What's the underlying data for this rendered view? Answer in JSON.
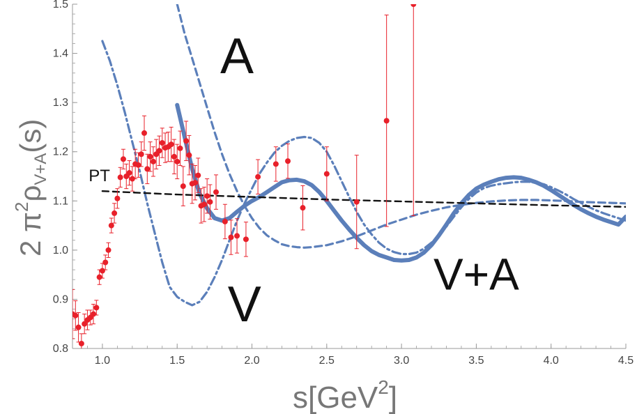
{
  "chart_data": {
    "type": "line",
    "xlabel": "s[GeV²]",
    "ylabel_parts": {
      "prefix": "2 π",
      "sup": "2",
      "rho": "ρ",
      "sub": "V+A",
      "suffix": "(s)"
    },
    "xlabel_parts": {
      "base": "s[GeV",
      "sup": "2",
      "close": "]"
    },
    "xlim": [
      0.8,
      4.5
    ],
    "ylim": [
      0.8,
      1.5
    ],
    "x_ticks": [
      1.0,
      1.5,
      2.0,
      2.5,
      3.0,
      3.5,
      4.0,
      4.5
    ],
    "x_tick_labels": [
      "1.0",
      "1.5",
      "2.0",
      "2.5",
      "3.0",
      "3.5",
      "4.0",
      "4.5"
    ],
    "y_ticks": [
      0.8,
      0.9,
      1.0,
      1.1,
      1.2,
      1.3,
      1.4,
      1.5
    ],
    "y_tick_labels": [
      "0.8",
      "0.9",
      "1.0",
      "1.1",
      "1.2",
      "1.3",
      "1.4",
      "1.5"
    ],
    "grid": false,
    "colors": {
      "model": "#5b7fba",
      "pt": "#111111",
      "data": "#e8202a",
      "axis": "#999999"
    },
    "annotations": [
      {
        "text": "A",
        "x": 1.9,
        "y": 1.36
      },
      {
        "text": "V",
        "x": 1.95,
        "y": 0.855
      },
      {
        "text": "V+A",
        "x": 3.5,
        "y": 0.92
      },
      {
        "text": "PT",
        "x": 0.98,
        "y": 1.14
      }
    ],
    "series": [
      {
        "style": "solid",
        "x": [
          1.5,
          1.55,
          1.6,
          1.65,
          1.7,
          1.75,
          1.8,
          1.85,
          1.9,
          1.95,
          2.0,
          2.05,
          2.1,
          2.15,
          2.2,
          2.25,
          2.3,
          2.35,
          2.4,
          2.45,
          2.5,
          2.55,
          2.6,
          2.65,
          2.7,
          2.75,
          2.8,
          2.85,
          2.9,
          2.95,
          3.0,
          3.05,
          3.1,
          3.15,
          3.2,
          3.25,
          3.3,
          3.35,
          3.4,
          3.45,
          3.5,
          3.55,
          3.6,
          3.65,
          3.7,
          3.75,
          3.8,
          3.85,
          3.9,
          3.95,
          4.0,
          4.05,
          4.1,
          4.15,
          4.2,
          4.25,
          4.3,
          4.35,
          4.4,
          4.45,
          4.5
        ],
        "y": [
          1.295,
          1.23,
          1.165,
          1.115,
          1.085,
          1.065,
          1.06,
          1.065,
          1.078,
          1.09,
          1.1,
          1.108,
          1.118,
          1.128,
          1.138,
          1.142,
          1.143,
          1.14,
          1.132,
          1.118,
          1.1,
          1.08,
          1.06,
          1.042,
          1.025,
          1.01,
          0.998,
          0.99,
          0.985,
          0.98,
          0.979,
          0.98,
          0.985,
          0.995,
          1.01,
          1.03,
          1.052,
          1.075,
          1.095,
          1.112,
          1.125,
          1.133,
          1.139,
          1.144,
          1.147,
          1.148,
          1.147,
          1.143,
          1.138,
          1.131,
          1.122,
          1.112,
          1.102,
          1.092,
          1.083,
          1.075,
          1.068,
          1.062,
          1.057,
          1.052,
          1.068
        ]
      },
      {
        "style": "dashed",
        "x": [
          1.5,
          1.55,
          1.6,
          1.65,
          1.7,
          1.75,
          1.8,
          1.85,
          1.9,
          1.95,
          2.0,
          2.05,
          2.1,
          2.15,
          2.2,
          2.25,
          2.3,
          2.35,
          2.4,
          2.45,
          2.5,
          2.55,
          2.6,
          2.65,
          2.7,
          2.75,
          2.8,
          2.85,
          2.9,
          2.95,
          3.0,
          3.1,
          3.2,
          3.3,
          3.4,
          3.5,
          3.6,
          3.7,
          3.8,
          3.9,
          4.0,
          4.1,
          4.2,
          4.3,
          4.4,
          4.5
        ],
        "y": [
          1.5,
          1.44,
          1.39,
          1.34,
          1.29,
          1.24,
          1.195,
          1.155,
          1.12,
          1.09,
          1.065,
          1.045,
          1.03,
          1.02,
          1.012,
          1.008,
          1.006,
          1.005,
          1.006,
          1.008,
          1.01,
          1.014,
          1.018,
          1.023,
          1.028,
          1.034,
          1.04,
          1.046,
          1.052,
          1.057,
          1.062,
          1.072,
          1.08,
          1.087,
          1.092,
          1.096,
          1.099,
          1.101,
          1.102,
          1.102,
          1.101,
          1.1,
          1.098,
          1.097,
          1.096,
          1.095
        ]
      },
      {
        "style": "dashdot",
        "x": [
          1.0,
          1.05,
          1.1,
          1.15,
          1.2,
          1.25,
          1.3,
          1.35,
          1.4,
          1.45,
          1.5,
          1.55,
          1.6,
          1.65,
          1.7,
          1.75,
          1.8,
          1.85,
          1.9,
          1.95,
          2.0,
          2.05,
          2.1,
          2.15,
          2.2,
          2.25,
          2.3,
          2.35,
          2.4,
          2.45,
          2.5,
          2.55,
          2.6,
          2.65,
          2.7,
          2.75,
          2.8,
          2.85,
          2.9,
          2.95,
          3.0,
          3.05,
          3.1,
          3.15,
          3.2,
          3.25,
          3.3,
          3.35,
          3.4,
          3.45,
          3.5,
          3.55,
          3.6,
          3.65,
          3.7,
          3.75,
          3.8,
          3.85,
          3.9,
          3.95,
          4.0,
          4.05,
          4.1,
          4.15,
          4.2,
          4.25,
          4.3,
          4.35,
          4.4,
          4.45,
          4.5
        ],
        "y": [
          1.425,
          1.385,
          1.335,
          1.28,
          1.22,
          1.16,
          1.095,
          1.035,
          0.975,
          0.925,
          0.905,
          0.895,
          0.888,
          0.895,
          0.915,
          0.945,
          0.98,
          1.02,
          1.06,
          1.095,
          1.125,
          1.155,
          1.178,
          1.198,
          1.212,
          1.222,
          1.228,
          1.23,
          1.228,
          1.218,
          1.2,
          1.172,
          1.14,
          1.108,
          1.078,
          1.052,
          1.032,
          1.015,
          1.003,
          0.996,
          0.992,
          0.992,
          0.995,
          1.003,
          1.015,
          1.03,
          1.048,
          1.068,
          1.087,
          1.104,
          1.117,
          1.126,
          1.131,
          1.134,
          1.136,
          1.138,
          1.139,
          1.139,
          1.137,
          1.134,
          1.128,
          1.121,
          1.113,
          1.104,
          1.096,
          1.088,
          1.081,
          1.075,
          1.07,
          1.065,
          1.06
        ]
      },
      {
        "style": "pt-dashed",
        "x": [
          1.0,
          1.5,
          2.0,
          2.5,
          3.0,
          3.5,
          4.0,
          4.5
        ],
        "y": [
          1.12,
          1.113,
          1.108,
          1.103,
          1.099,
          1.095,
          1.091,
          1.088
        ]
      }
    ],
    "data_points": [
      {
        "x": 0.8,
        "y": 0.87,
        "err": 0.05
      },
      {
        "x": 0.82,
        "y": 0.867,
        "err": 0.03
      },
      {
        "x": 0.84,
        "y": 0.843,
        "err": 0.03
      },
      {
        "x": 0.86,
        "y": 0.81,
        "err": 0.02
      },
      {
        "x": 0.88,
        "y": 0.85,
        "err": 0.02
      },
      {
        "x": 0.9,
        "y": 0.858,
        "err": 0.02
      },
      {
        "x": 0.92,
        "y": 0.863,
        "err": 0.015
      },
      {
        "x": 0.94,
        "y": 0.87,
        "err": 0.02
      },
      {
        "x": 0.96,
        "y": 0.883,
        "err": 0.015
      },
      {
        "x": 0.98,
        "y": 0.945,
        "err": 0.015
      },
      {
        "x": 1.0,
        "y": 0.958,
        "err": 0.015
      },
      {
        "x": 1.02,
        "y": 0.975,
        "err": 0.015
      },
      {
        "x": 1.04,
        "y": 1.0,
        "err": 0.015
      },
      {
        "x": 1.06,
        "y": 1.05,
        "err": 0.015
      },
      {
        "x": 1.08,
        "y": 1.075,
        "err": 0.02
      },
      {
        "x": 1.1,
        "y": 1.105,
        "err": 0.02
      },
      {
        "x": 1.12,
        "y": 1.148,
        "err": 0.02
      },
      {
        "x": 1.14,
        "y": 1.185,
        "err": 0.02
      },
      {
        "x": 1.16,
        "y": 1.15,
        "err": 0.025
      },
      {
        "x": 1.18,
        "y": 1.157,
        "err": 0.025
      },
      {
        "x": 1.2,
        "y": 1.145,
        "err": 0.025
      },
      {
        "x": 1.22,
        "y": 1.175,
        "err": 0.03
      },
      {
        "x": 1.24,
        "y": 1.173,
        "err": 0.025
      },
      {
        "x": 1.26,
        "y": 1.195,
        "err": 0.025
      },
      {
        "x": 1.28,
        "y": 1.238,
        "err": 0.035
      },
      {
        "x": 1.3,
        "y": 1.165,
        "err": 0.03
      },
      {
        "x": 1.32,
        "y": 1.19,
        "err": 0.03
      },
      {
        "x": 1.34,
        "y": 1.18,
        "err": 0.03
      },
      {
        "x": 1.36,
        "y": 1.195,
        "err": 0.03
      },
      {
        "x": 1.38,
        "y": 1.202,
        "err": 0.03
      },
      {
        "x": 1.4,
        "y": 1.218,
        "err": 0.03
      },
      {
        "x": 1.42,
        "y": 1.208,
        "err": 0.03
      },
      {
        "x": 1.44,
        "y": 1.21,
        "err": 0.03
      },
      {
        "x": 1.46,
        "y": 1.215,
        "err": 0.035
      },
      {
        "x": 1.48,
        "y": 1.19,
        "err": 0.035
      },
      {
        "x": 1.5,
        "y": 1.18,
        "err": 0.035
      },
      {
        "x": 1.52,
        "y": 1.207,
        "err": 0.035
      },
      {
        "x": 1.54,
        "y": 1.13,
        "err": 0.04
      },
      {
        "x": 1.56,
        "y": 1.222,
        "err": 0.04
      },
      {
        "x": 1.58,
        "y": 1.193,
        "err": 0.04
      },
      {
        "x": 1.6,
        "y": 1.135,
        "err": 0.04
      },
      {
        "x": 1.62,
        "y": 1.137,
        "err": 0.035
      },
      {
        "x": 1.64,
        "y": 1.152,
        "err": 0.035
      },
      {
        "x": 1.66,
        "y": 1.09,
        "err": 0.035
      },
      {
        "x": 1.68,
        "y": 1.093,
        "err": 0.035
      },
      {
        "x": 1.7,
        "y": 1.11,
        "err": 0.035
      },
      {
        "x": 1.72,
        "y": 1.098,
        "err": 0.035
      },
      {
        "x": 1.76,
        "y": 1.118,
        "err": 0.035
      },
      {
        "x": 1.82,
        "y": 1.058,
        "err": 0.035
      },
      {
        "x": 1.86,
        "y": 1.026,
        "err": 0.035
      },
      {
        "x": 1.9,
        "y": 1.029,
        "err": 0.035
      },
      {
        "x": 1.96,
        "y": 1.022,
        "err": 0.035
      },
      {
        "x": 2.04,
        "y": 1.149,
        "err": 0.035
      },
      {
        "x": 2.16,
        "y": 1.175,
        "err": 0.035
      },
      {
        "x": 2.24,
        "y": 1.181,
        "err": 0.035
      },
      {
        "x": 2.34,
        "y": 1.086,
        "err": 0.045
      },
      {
        "x": 2.5,
        "y": 1.155,
        "err": 0.055
      },
      {
        "x": 2.7,
        "y": 1.098,
        "err": 0.095
      },
      {
        "x": 2.9,
        "y": 1.263,
        "err": 0.215
      },
      {
        "x": 3.08,
        "y": 1.5,
        "err": 0.43
      }
    ]
  }
}
